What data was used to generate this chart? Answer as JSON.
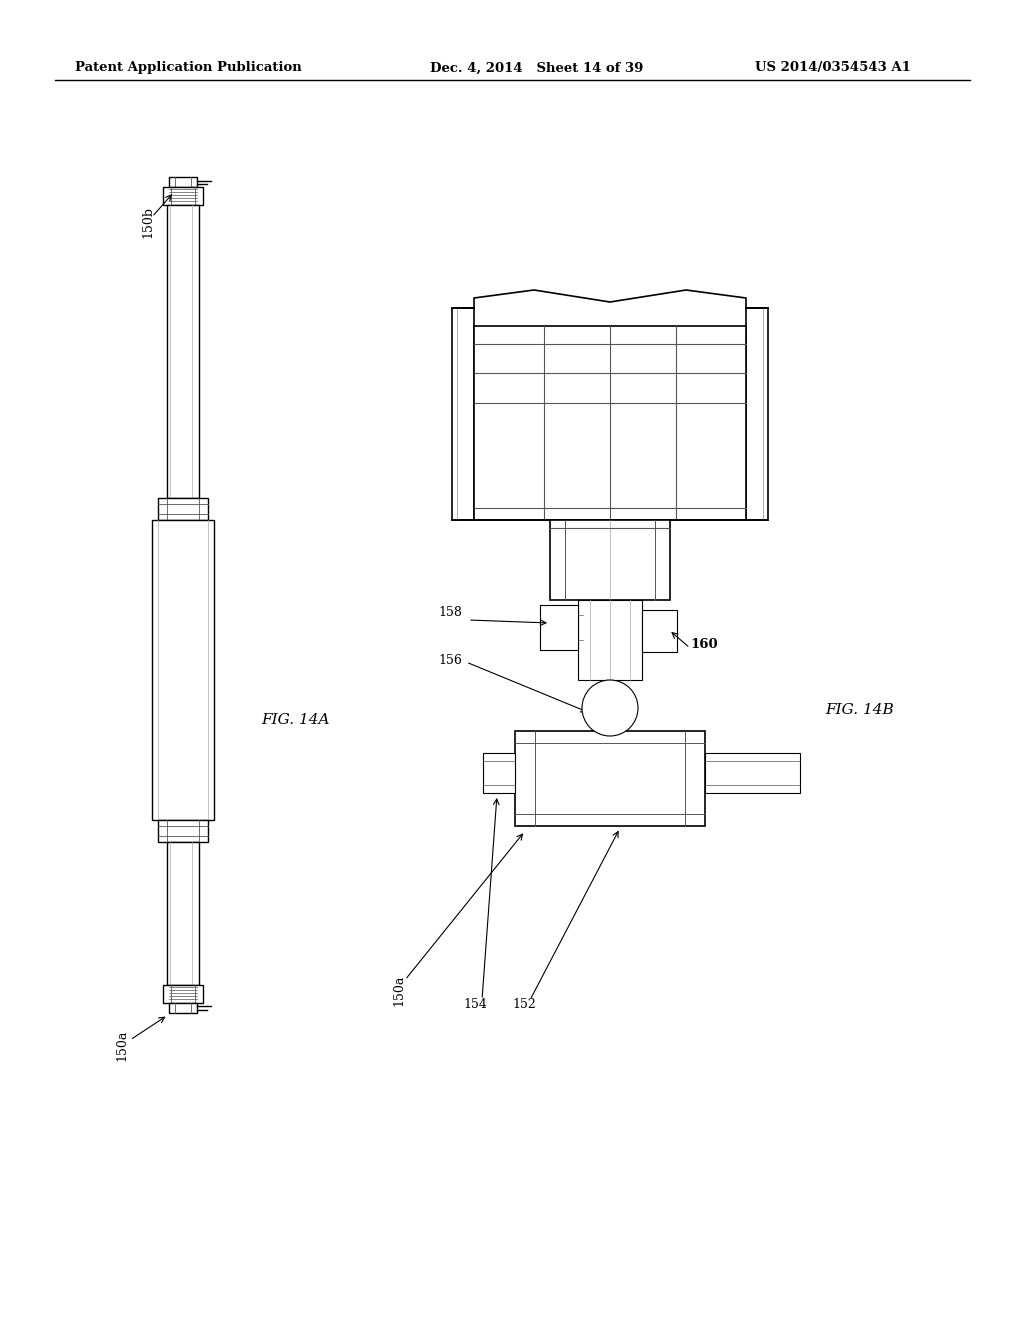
{
  "bg_color": "#ffffff",
  "header_left": "Patent Application Publication",
  "header_mid": "Dec. 4, 2014   Sheet 14 of 39",
  "header_right": "US 2014/0354543 A1",
  "fig14a_label": "FIG. 14A",
  "fig14b_label": "FIG. 14B"
}
